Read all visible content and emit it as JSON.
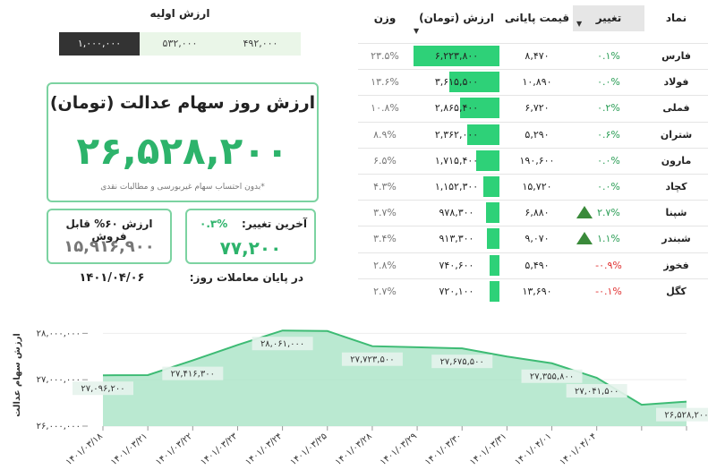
{
  "initial_value": {
    "title": "ارزش اولیه",
    "options": [
      "۱,۰۰۰,۰۰۰",
      "۵۳۲,۰۰۰",
      "۴۹۲,۰۰۰"
    ]
  },
  "card": {
    "title": "ارزش روز سهام عدالت (تومان)",
    "value": "۲۶,۵۲۸,۲۰۰",
    "note": "*بدون احتساب سهام غیربورسی و مطالبات نقدی"
  },
  "last_change": {
    "label": "آخرین تغییر:",
    "percent": "۰.۳%",
    "value": "۷۷,۲۰۰"
  },
  "sellable": {
    "label": "ارزش ۶۰% قابل فروش",
    "value": "۱۵,۹۱۶,۹۰۰"
  },
  "date": {
    "label": "در پایان معاملات روز:",
    "value": "۱۴۰۱/۰۴/۰۶"
  },
  "table": {
    "headers": [
      "نماد",
      "تغییر",
      "قیمت پایانی",
      "ارزش (تومان)",
      "وزن"
    ],
    "rows": [
      [
        "فارس",
        "۰.۱%",
        "۸,۴۷۰",
        "۶,۲۲۳,۸۰۰",
        "۲۳.۵%"
      ],
      [
        "فولاد",
        "۰.۰%",
        "۱۰,۸۹۰",
        "۳,۶۱۵,۵۰۰",
        "۱۳.۶%"
      ],
      [
        "فملی",
        "۰.۲%",
        "۶,۷۲۰",
        "۲,۸۶۵,۴۰۰",
        "۱۰.۸%"
      ],
      [
        "شتران",
        "۰.۶%",
        "۵,۲۹۰",
        "۲,۳۶۲,۰۰۰",
        "۸.۹%"
      ],
      [
        "مارون",
        "۰.۰%",
        "۱۹۰,۶۰۰",
        "۱,۷۱۵,۴۰۰",
        "۶.۵%"
      ],
      [
        "کچاد",
        "۰.۰%",
        "۱۵,۷۲۰",
        "۱,۱۵۲,۳۰۰",
        "۴.۳%"
      ],
      [
        "شپنا",
        "۲.۷%",
        "۶,۸۸۰",
        "۹۷۸,۳۰۰",
        "۳.۷%"
      ],
      [
        "شبندر",
        "۱.۱%",
        "۹,۰۷۰",
        "۹۱۳,۳۰۰",
        "۳.۴%"
      ],
      [
        "فخوز",
        "-۰.۹%",
        "۵,۴۹۰",
        "۷۴۰,۶۰۰",
        "۲.۸%"
      ],
      [
        "کگل",
        "-۰.۱%",
        "۱۳,۶۹۰",
        "۷۲۰,۱۰۰",
        "۲.۷%"
      ]
    ]
  },
  "chart_data": {
    "type": "area",
    "ylabel": "ارزش سهام عدالت",
    "categories": [
      "۱۴۰۱/۰۳/۱۸",
      "۱۴۰۱/۰۳/۲۱",
      "۱۴۰۱/۰۳/۲۲",
      "۱۴۰۱/۰۳/۲۳",
      "۱۴۰۱/۰۳/۲۴",
      "۱۴۰۱/۰۳/۲۵",
      "۱۴۰۱/۰۳/۲۸",
      "۱۴۰۱/۰۳/۲۹",
      "۱۴۰۱/۰۳/۳۰",
      "۱۴۰۱/۰۳/۳۱",
      "۱۴۰۱/۰۴/۰۱",
      "۱۴۰۱/۰۴/۰۴",
      null,
      null
    ],
    "values": [
      27096200,
      27100000,
      27416300,
      27750000,
      28061000,
      28050000,
      27723500,
      27700000,
      27675500,
      27500000,
      27355800,
      27041500,
      26460000,
      26528200
    ],
    "value_labels": [
      "۲۷,۰۹۶,۲۰۰",
      null,
      "۲۷,۴۱۶,۳۰۰",
      null,
      "۲۸,۰۶۱,۰۰۰",
      null,
      "۲۷,۷۲۳,۵۰۰",
      null,
      "۲۷,۶۷۵,۵۰۰",
      null,
      "۲۷,۳۵۵,۸۰۰",
      "۲۷,۰۴۱,۵۰۰",
      null,
      "۲۶,۵۲۸,۲۰۰"
    ],
    "color": "#3dbb74",
    "fill": "#a9e4c5",
    "ylim": [
      26000000,
      28200000
    ],
    "yticks": [
      {
        "value": 26000000,
        "label": "۲۶,۰۰۰,۰۰۰"
      },
      {
        "value": 27000000,
        "label": "۲۷,۰۰۰,۰۰۰"
      },
      {
        "value": 28000000,
        "label": "۲۸,۰۰۰,۰۰۰"
      }
    ]
  }
}
